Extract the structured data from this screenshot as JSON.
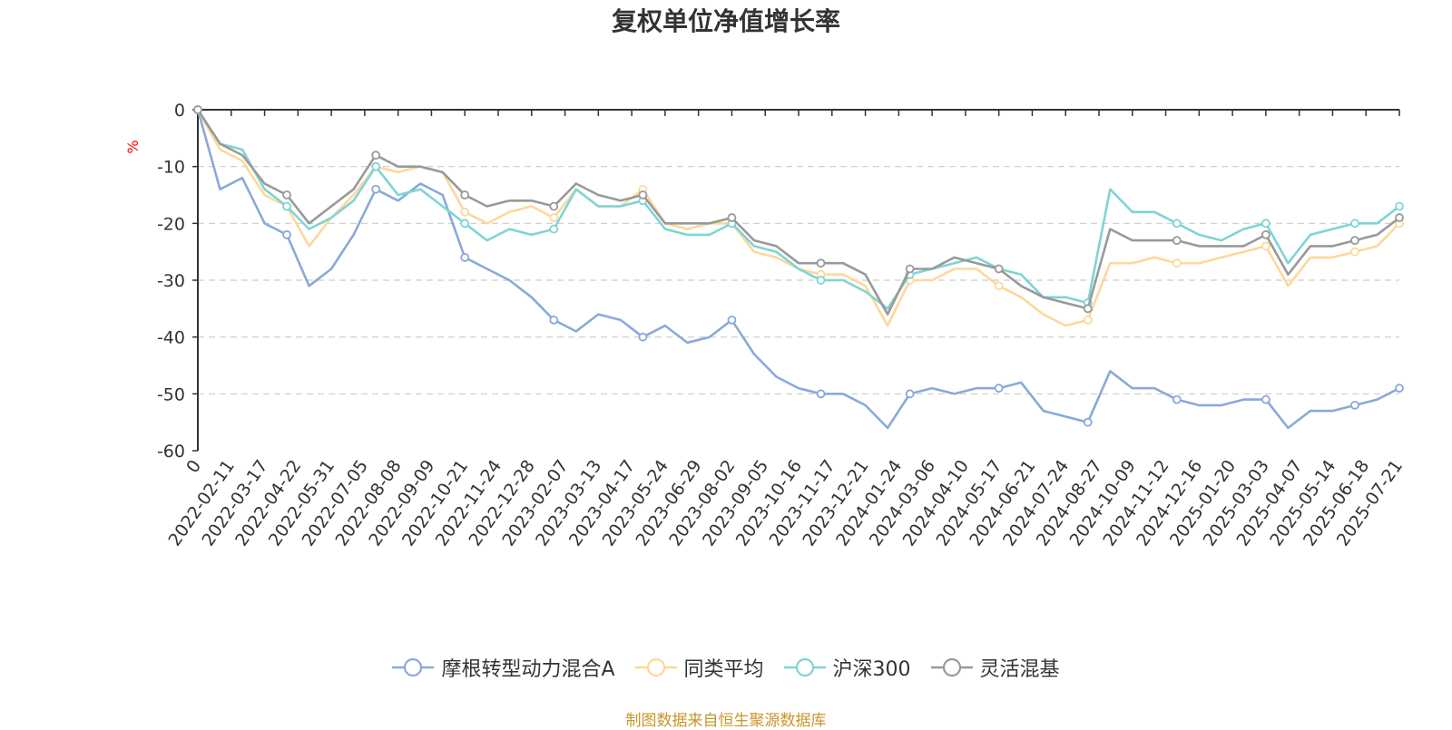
{
  "chart_data": {
    "type": "line",
    "title": "复权单位净值增长率",
    "ylabel": "%",
    "ylim": [
      -60,
      0
    ],
    "yticks": [
      0,
      -10,
      -20,
      -30,
      -40,
      -50,
      -60
    ],
    "grid": true,
    "legend_position": "bottom",
    "x_tick_labels": [
      "0",
      "2022-02-11",
      "2022-03-17",
      "2022-04-22",
      "2022-05-31",
      "2022-07-05",
      "2022-08-08",
      "2022-09-09",
      "2022-10-21",
      "2022-11-24",
      "2022-12-28",
      "2023-02-07",
      "2023-03-13",
      "2023-04-17",
      "2023-05-24",
      "2023-06-29",
      "2023-08-02",
      "2023-09-05",
      "2023-10-16",
      "2023-11-17",
      "2023-12-21",
      "2024-01-24",
      "2024-03-06",
      "2024-04-10",
      "2024-05-17",
      "2024-06-21",
      "2024-07-24",
      "2024-08-27",
      "2024-10-09",
      "2024-11-12",
      "2024-12-16",
      "2025-01-20",
      "2025-03-03",
      "2025-04-07",
      "2025-05-14",
      "2025-06-18",
      "2025-07-21"
    ],
    "series": [
      {
        "name": "摩根转型动力混合A",
        "color": "#8aa9d9",
        "values": [
          0,
          -14,
          -12,
          -20,
          -22,
          -31,
          -28,
          -22,
          -14,
          -16,
          -13,
          -15,
          -26,
          -28,
          -30,
          -33,
          -37,
          -39,
          -36,
          -37,
          -40,
          -38,
          -41,
          -40,
          -37,
          -43,
          -47,
          -49,
          -50,
          -50,
          -52,
          -56,
          -50,
          -49,
          -50,
          -49,
          -49,
          -48,
          -53,
          -54,
          -55,
          -46,
          -49,
          -49,
          -51,
          -52,
          -52,
          -51,
          -51,
          -56,
          -53,
          -53,
          -52,
          -51,
          -49
        ]
      },
      {
        "name": "同类平均",
        "color": "#fdd89b",
        "values": [
          0,
          -7,
          -9,
          -15,
          -17,
          -24,
          -19,
          -15,
          -10,
          -11,
          -10,
          -11,
          -18,
          -20,
          -18,
          -17,
          -19,
          -14,
          -17,
          -17,
          -14,
          -20,
          -21,
          -20,
          -20,
          -25,
          -26,
          -28,
          -29,
          -29,
          -31,
          -38,
          -30,
          -30,
          -28,
          -28,
          -31,
          -33,
          -36,
          -38,
          -37,
          -27,
          -27,
          -26,
          -27,
          -27,
          -26,
          -25,
          -24,
          -31,
          -26,
          -26,
          -25,
          -24,
          -20
        ]
      },
      {
        "name": "沪深300",
        "color": "#7fd4d4",
        "values": [
          0,
          -6,
          -7,
          -14,
          -17,
          -21,
          -19,
          -16,
          -10,
          -15,
          -14,
          -17,
          -20,
          -23,
          -21,
          -22,
          -21,
          -14,
          -17,
          -17,
          -16,
          -21,
          -22,
          -22,
          -20,
          -24,
          -25,
          -28,
          -30,
          -30,
          -32,
          -35,
          -29,
          -28,
          -27,
          -26,
          -28,
          -29,
          -33,
          -33,
          -34,
          -14,
          -18,
          -18,
          -20,
          -22,
          -23,
          -21,
          -20,
          -27,
          -22,
          -21,
          -20,
          -20,
          -17
        ]
      },
      {
        "name": "灵活混基",
        "color": "#999999",
        "values": [
          0,
          -6,
          -8,
          -13,
          -15,
          -20,
          -17,
          -14,
          -8,
          -10,
          -10,
          -11,
          -15,
          -17,
          -16,
          -16,
          -17,
          -13,
          -15,
          -16,
          -15,
          -20,
          -20,
          -20,
          -19,
          -23,
          -24,
          -27,
          -27,
          -27,
          -29,
          -36,
          -28,
          -28,
          -26,
          -27,
          -28,
          -31,
          -33,
          -34,
          -35,
          -21,
          -23,
          -23,
          -23,
          -24,
          -24,
          -24,
          -22,
          -29,
          -24,
          -24,
          -23,
          -22,
          -19
        ]
      }
    ]
  },
  "source_text": "制图数据来自恒生聚源数据库"
}
